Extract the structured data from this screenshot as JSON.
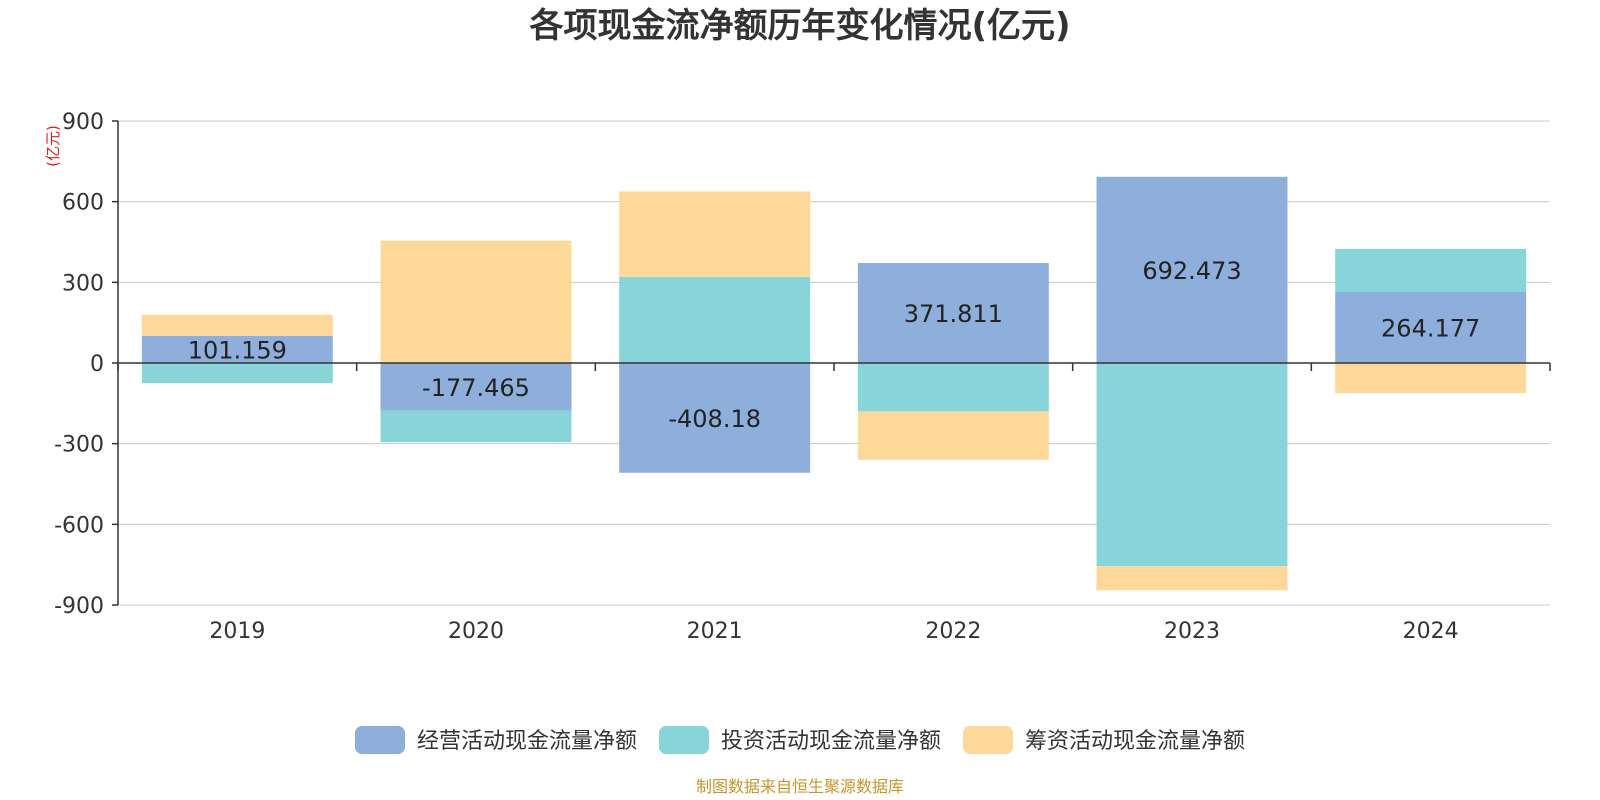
{
  "chart_data": {
    "type": "bar",
    "stacked": true,
    "title": "各项现金流净额历年变化情况(亿元)",
    "ylabel": "(亿元)",
    "categories": [
      "2019",
      "2020",
      "2021",
      "2022",
      "2023",
      "2024"
    ],
    "ylim": [
      -900,
      900
    ],
    "yticks": [
      900,
      600,
      300,
      0,
      -300,
      -600,
      -900
    ],
    "grid": true,
    "legend_position": "bottom",
    "series": [
      {
        "name": "经营活动现金流量净额",
        "color": "#8eaedb",
        "values": [
          101.159,
          -177.465,
          -408.18,
          371.811,
          692.473,
          264.177
        ],
        "show_labels": true
      },
      {
        "name": "投资活动现金流量净额",
        "color": "#87d5d8",
        "values": [
          -75,
          -117,
          320,
          -180,
          -755,
          160
        ],
        "show_labels": false
      },
      {
        "name": "筹资活动现金流量净额",
        "color": "#fed898",
        "values": [
          78,
          455,
          318,
          -180,
          -90,
          -112
        ],
        "show_labels": false
      }
    ]
  },
  "source_note": "制图数据来自恒生聚源数据库"
}
